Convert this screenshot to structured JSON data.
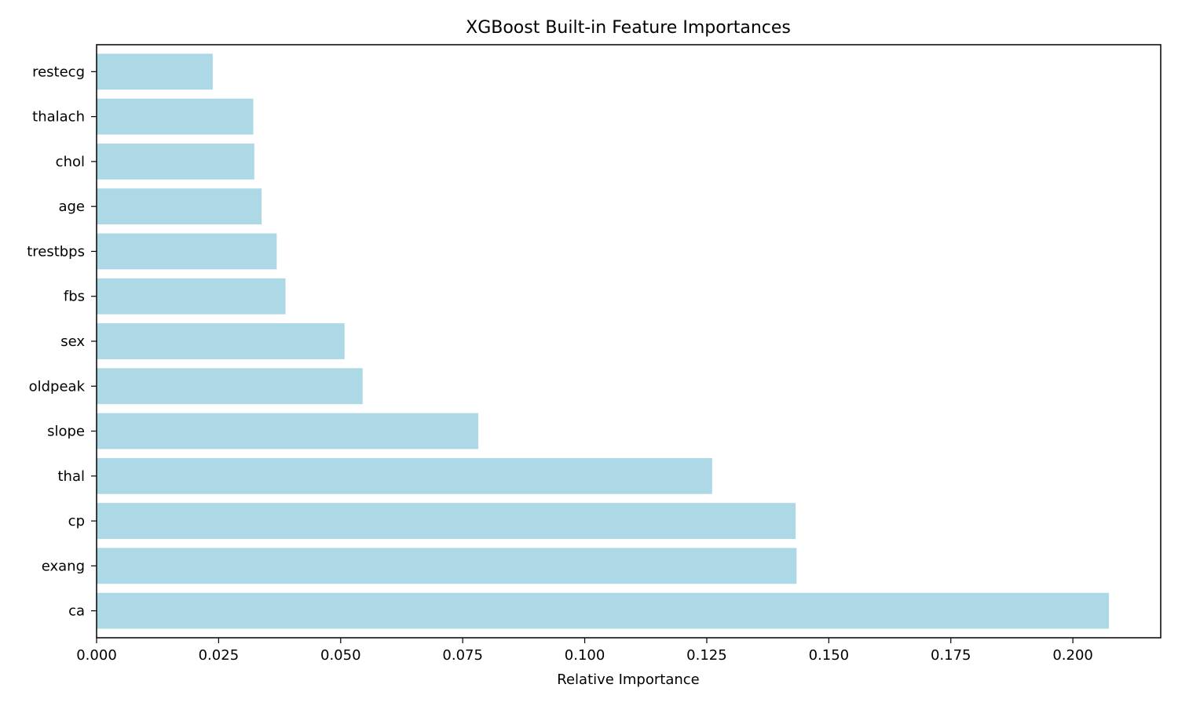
{
  "chart_data": {
    "type": "bar",
    "orientation": "horizontal",
    "title": "XGBoost Built-in Feature Importances",
    "xlabel": "Relative Importance",
    "ylabel": "",
    "categories": [
      "ca",
      "exang",
      "cp",
      "thal",
      "slope",
      "oldpeak",
      "sex",
      "fbs",
      "trestbps",
      "age",
      "chol",
      "thalach",
      "restecg"
    ],
    "values": [
      0.2074,
      0.1434,
      0.1432,
      0.1261,
      0.0782,
      0.0545,
      0.0508,
      0.0387,
      0.0369,
      0.0338,
      0.0323,
      0.0321,
      0.0238
    ],
    "xlim": [
      0,
      0.218
    ],
    "xticks": [
      0.0,
      0.025,
      0.05,
      0.075,
      0.1,
      0.125,
      0.15,
      0.175,
      0.2
    ],
    "xtick_labels": [
      "0.000",
      "0.025",
      "0.050",
      "0.075",
      "0.100",
      "0.125",
      "0.150",
      "0.175",
      "0.200"
    ],
    "bar_color": "#add8e6",
    "grid": false,
    "legend": "none"
  }
}
